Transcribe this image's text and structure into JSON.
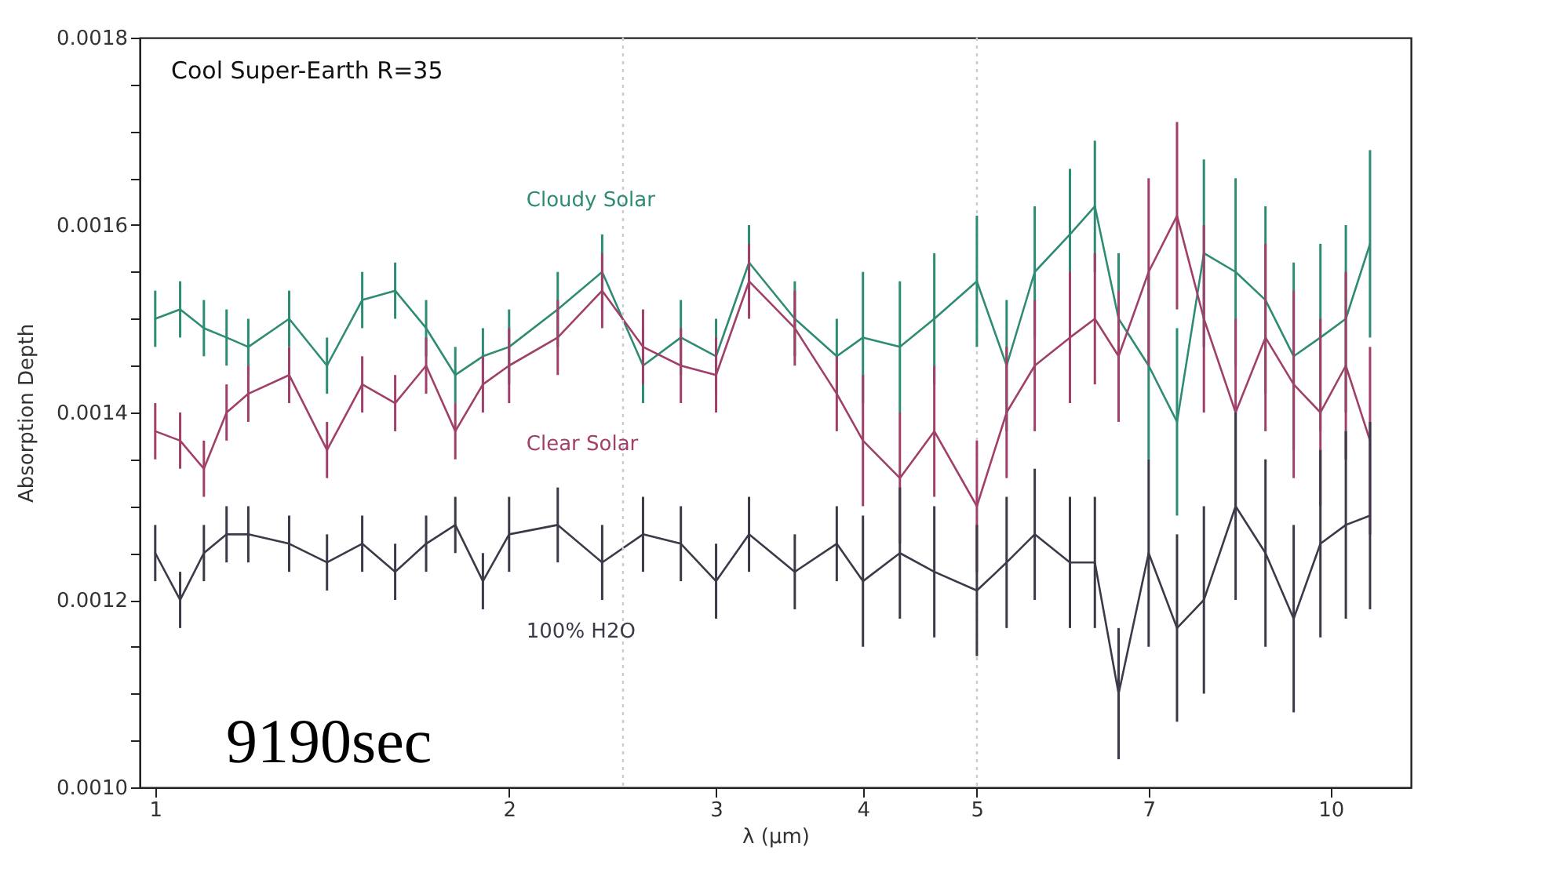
{
  "chart_data": {
    "type": "line",
    "title": "Cool Super-Earth R=35",
    "xlabel": "λ (µm)",
    "ylabel": "Absorption Depth",
    "annotations": [
      "9190sec"
    ],
    "log": "x",
    "grid": false,
    "legend": false,
    "marker": "none",
    "line_style": "solid",
    "xlim": [
      0.97,
      11.7
    ],
    "xticks": [
      1,
      2,
      3,
      4,
      5,
      7,
      10
    ],
    "ylim": [
      0.001,
      0.0018
    ],
    "yticks": [
      {
        "value": 0.001,
        "label": "0.0010"
      },
      {
        "value": 0.00105,
        "label": null
      },
      {
        "value": 0.0011,
        "label": null
      },
      {
        "value": 0.00115,
        "label": null
      },
      {
        "value": 0.0012,
        "label": "0.0012"
      },
      {
        "value": 0.00125,
        "label": null
      },
      {
        "value": 0.0013,
        "label": null
      },
      {
        "value": 0.00135,
        "label": null
      },
      {
        "value": 0.0014,
        "label": "0.0014"
      },
      {
        "value": 0.00145,
        "label": null
      },
      {
        "value": 0.0015,
        "label": null
      },
      {
        "value": 0.00155,
        "label": null
      },
      {
        "value": 0.0016,
        "label": "0.0016"
      },
      {
        "value": 0.00165,
        "label": null
      },
      {
        "value": 0.0017,
        "label": null
      },
      {
        "value": 0.00175,
        "label": null
      },
      {
        "value": 0.0018,
        "label": "0.0018"
      }
    ],
    "ref_lines": [
      {
        "axis": "x",
        "value": 2.5,
        "color": "#cccccc",
        "line_style": "dotted"
      },
      {
        "axis": "x",
        "value": 5,
        "color": "#cccccc",
        "line_style": "dotted"
      }
    ],
    "x": [
      1.0,
      1.05,
      1.1,
      1.15,
      1.2,
      1.3,
      1.4,
      1.5,
      1.6,
      1.7,
      1.8,
      1.9,
      2.0,
      2.2,
      2.4,
      2.6,
      2.8,
      3.0,
      3.2,
      3.5,
      3.8,
      4.0,
      4.3,
      4.6,
      5.0,
      5.3,
      5.6,
      6.0,
      6.3,
      6.6,
      7.0,
      7.4,
      7.8,
      8.3,
      8.8,
      9.3,
      9.8,
      10.3,
      10.8
    ],
    "series": [
      {
        "name": "Cloudy Solar",
        "color": "#2e8b74",
        "values": [
          0.0015,
          0.00151,
          0.00149,
          0.00148,
          0.00147,
          0.0015,
          0.00145,
          0.00152,
          0.00153,
          0.00149,
          0.00144,
          0.00146,
          0.00147,
          0.00151,
          0.00155,
          0.00145,
          0.00148,
          0.00146,
          0.00156,
          0.0015,
          0.00146,
          0.00148,
          0.00147,
          0.0015,
          0.00154,
          0.00145,
          0.00155,
          0.00159,
          0.00162,
          0.0015,
          0.00145,
          0.00139,
          0.00157,
          0.00155,
          0.00152,
          0.00146,
          0.00148,
          0.0015,
          0.00158
        ],
        "errors": [
          3e-05,
          3e-05,
          3e-05,
          3e-05,
          3e-05,
          3e-05,
          3e-05,
          3e-05,
          3e-05,
          3e-05,
          3e-05,
          3e-05,
          4e-05,
          4e-05,
          4e-05,
          4e-05,
          4e-05,
          4e-05,
          4e-05,
          4e-05,
          4e-05,
          7e-05,
          7e-05,
          7e-05,
          7e-05,
          7e-05,
          7e-05,
          7e-05,
          7e-05,
          7e-05,
          0.0001,
          0.0001,
          0.0001,
          0.0001,
          0.0001,
          0.0001,
          0.0001,
          0.0001,
          0.0001
        ]
      },
      {
        "name": "Clear Solar",
        "color": "#a0406a",
        "values": [
          0.00138,
          0.00137,
          0.00134,
          0.0014,
          0.00142,
          0.00144,
          0.00136,
          0.00143,
          0.00141,
          0.00145,
          0.00138,
          0.00143,
          0.00145,
          0.00148,
          0.00153,
          0.00147,
          0.00145,
          0.00144,
          0.00154,
          0.00149,
          0.00142,
          0.00137,
          0.00133,
          0.00138,
          0.0013,
          0.0014,
          0.00145,
          0.00148,
          0.0015,
          0.00146,
          0.00155,
          0.00161,
          0.0015,
          0.0014,
          0.00148,
          0.00143,
          0.0014,
          0.00145,
          0.00137
        ],
        "errors": [
          3e-05,
          3e-05,
          3e-05,
          3e-05,
          3e-05,
          3e-05,
          3e-05,
          3e-05,
          3e-05,
          3e-05,
          3e-05,
          3e-05,
          4e-05,
          4e-05,
          4e-05,
          4e-05,
          4e-05,
          4e-05,
          4e-05,
          4e-05,
          4e-05,
          7e-05,
          7e-05,
          7e-05,
          7e-05,
          7e-05,
          7e-05,
          7e-05,
          7e-05,
          7e-05,
          0.0001,
          0.0001,
          0.0001,
          0.0001,
          0.0001,
          0.0001,
          0.0001,
          0.0001,
          0.0001
        ]
      },
      {
        "name": "100% H2O",
        "color": "#3a3a48",
        "values": [
          0.00125,
          0.0012,
          0.00125,
          0.00127,
          0.00127,
          0.00126,
          0.00124,
          0.00126,
          0.00123,
          0.00126,
          0.00128,
          0.00122,
          0.00127,
          0.00128,
          0.00124,
          0.00127,
          0.00126,
          0.00122,
          0.00127,
          0.00123,
          0.00126,
          0.00122,
          0.00125,
          0.00123,
          0.00121,
          0.00124,
          0.00127,
          0.00124,
          0.00124,
          0.0011,
          0.00125,
          0.00117,
          0.0012,
          0.0013,
          0.00125,
          0.00118,
          0.00126,
          0.00128,
          0.00129
        ],
        "errors": [
          3e-05,
          3e-05,
          3e-05,
          3e-05,
          3e-05,
          3e-05,
          3e-05,
          3e-05,
          3e-05,
          3e-05,
          3e-05,
          3e-05,
          4e-05,
          4e-05,
          4e-05,
          4e-05,
          4e-05,
          4e-05,
          4e-05,
          4e-05,
          4e-05,
          7e-05,
          7e-05,
          7e-05,
          7e-05,
          7e-05,
          7e-05,
          7e-05,
          7e-05,
          7e-05,
          0.0001,
          0.0001,
          0.0001,
          0.0001,
          0.0001,
          0.0001,
          0.0001,
          0.0001,
          0.0001
        ]
      }
    ]
  }
}
